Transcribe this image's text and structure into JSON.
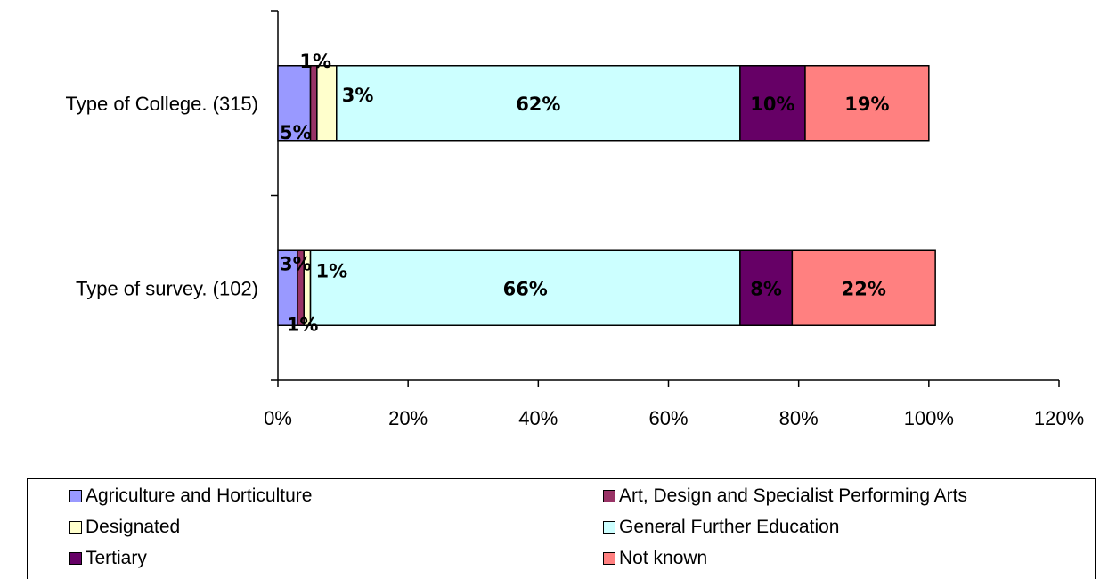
{
  "chart_data": {
    "type": "bar",
    "orientation": "horizontal",
    "stacked": true,
    "categories": [
      "Type of College. (315)",
      "Type of survey. (102)"
    ],
    "series": [
      {
        "name": "Agriculture and Horticulture",
        "color": "#9999ff",
        "values": [
          5,
          3
        ],
        "labels": [
          "5%",
          "3%"
        ]
      },
      {
        "name": "Art, Design and Specialist Performing Arts",
        "color": "#993366",
        "values": [
          1,
          1
        ],
        "labels": [
          "1%",
          "1%"
        ]
      },
      {
        "name": "Designated",
        "color": "#ffffcc",
        "values": [
          3,
          1
        ],
        "labels": [
          "3%",
          "1%"
        ]
      },
      {
        "name": "General Further Education",
        "color": "#ccffff",
        "values": [
          62,
          66
        ],
        "labels": [
          "62%",
          "66%"
        ]
      },
      {
        "name": "Tertiary",
        "color": "#660066",
        "values": [
          10,
          8
        ],
        "labels": [
          "10%",
          "8%"
        ]
      },
      {
        "name": "Not known",
        "color": "#ff8080",
        "values": [
          19,
          22
        ],
        "labels": [
          "19%",
          "22%"
        ]
      }
    ],
    "xlim": [
      0,
      120
    ],
    "xticks": [
      "0%",
      "20%",
      "40%",
      "60%",
      "80%",
      "100%",
      "120%"
    ],
    "grid": false,
    "legend_position": "bottom"
  }
}
